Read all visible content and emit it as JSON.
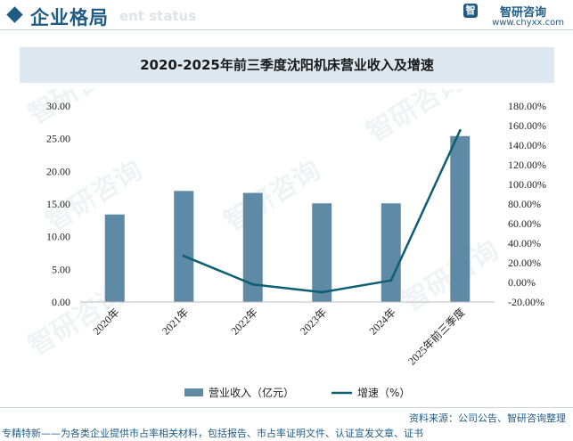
{
  "header": {
    "title": "企业格局",
    "subtitle": "ent status"
  },
  "brand": {
    "icon": "智",
    "name": "智研咨询",
    "url": "www.chyxx.com"
  },
  "watermark": "智研咨询",
  "chart_data": {
    "type": "bar",
    "title": "2020-2025年前三季度沈阳机床营业收入及增速",
    "categories": [
      "2020年",
      "2021年",
      "2022年",
      "2023年",
      "2024年",
      "2025年前三季度"
    ],
    "series": [
      {
        "name": "营业收入（亿元）",
        "type": "bar",
        "axis": "left",
        "color": "#5e8aa5",
        "values": [
          13.4,
          17.0,
          16.7,
          15.1,
          15.1,
          25.4
        ]
      },
      {
        "name": "增速（%）",
        "type": "line",
        "axis": "right",
        "color": "#0e5e74",
        "values": [
          null,
          27,
          -2,
          -10,
          2,
          155
        ]
      }
    ],
    "y_left": {
      "min": 0,
      "max": 30,
      "step": 5,
      "ticks": [
        "0.00",
        "5.00",
        "10.00",
        "15.00",
        "20.00",
        "25.00",
        "30.00"
      ]
    },
    "y_right": {
      "min": -20,
      "max": 180,
      "step": 20,
      "ticks": [
        "-20.00%",
        "0.00%",
        "20.00%",
        "40.00%",
        "60.00%",
        "80.00%",
        "100.00%",
        "120.00%",
        "140.00%",
        "160.00%",
        "180.00%"
      ]
    },
    "legend_position": "bottom",
    "grid": false
  },
  "footer": {
    "source": "资料来源：公司公告、智研咨询整理",
    "tagline": "专精特新——为各类企业提供市占率相关材料，包括报告、市占率证明文件、认证宣发文章、证书"
  }
}
